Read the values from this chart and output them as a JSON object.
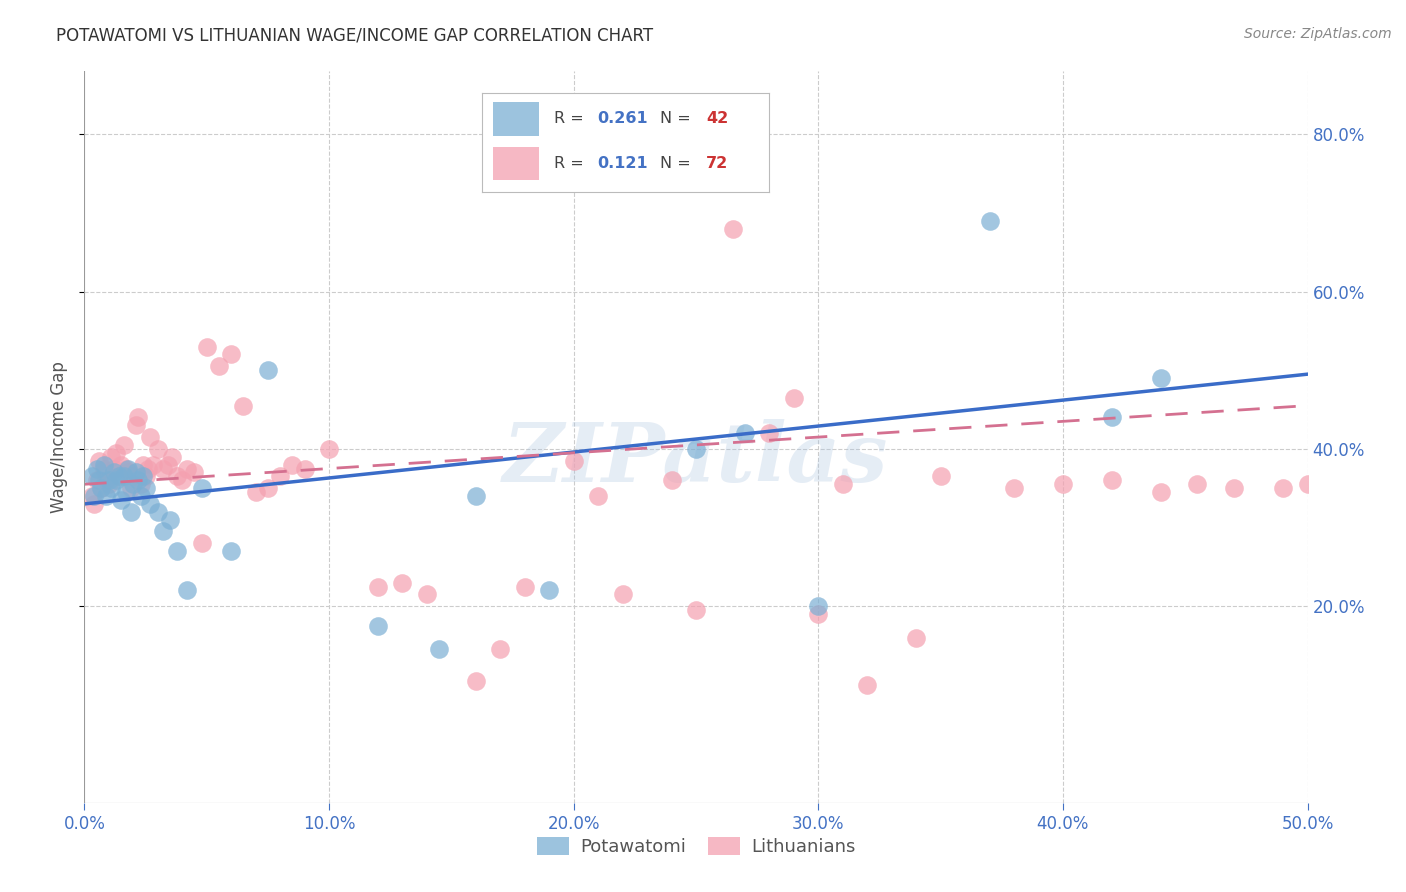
{
  "title": "POTAWATOMI VS LITHUANIAN WAGE/INCOME GAP CORRELATION CHART",
  "source": "Source: ZipAtlas.com",
  "ylabel": "Wage/Income Gap",
  "xlim": [
    0.0,
    0.5
  ],
  "ylim": [
    -0.05,
    0.88
  ],
  "xtick_labels": [
    "0.0%",
    "10.0%",
    "20.0%",
    "30.0%",
    "40.0%",
    "50.0%"
  ],
  "xtick_vals": [
    0.0,
    0.1,
    0.2,
    0.3,
    0.4,
    0.5
  ],
  "ytick_labels": [
    "20.0%",
    "40.0%",
    "60.0%",
    "80.0%"
  ],
  "ytick_vals": [
    0.2,
    0.4,
    0.6,
    0.8
  ],
  "grid_color": "#cccccc",
  "background_color": "#ffffff",
  "watermark": "ZIPatlas",
  "blue_color": "#7bafd4",
  "pink_color": "#f4a0b0",
  "blue_line_color": "#3a6cc8",
  "pink_line_color": "#d47090",
  "pot_x": [
    0.003,
    0.004,
    0.005,
    0.006,
    0.007,
    0.008,
    0.009,
    0.01,
    0.011,
    0.012,
    0.013,
    0.014,
    0.015,
    0.016,
    0.017,
    0.018,
    0.019,
    0.02,
    0.021,
    0.022,
    0.023,
    0.024,
    0.025,
    0.027,
    0.03,
    0.032,
    0.035,
    0.038,
    0.042,
    0.048,
    0.06,
    0.075,
    0.12,
    0.145,
    0.25,
    0.27,
    0.3,
    0.37,
    0.42,
    0.44,
    0.16,
    0.19
  ],
  "pot_y": [
    0.365,
    0.34,
    0.375,
    0.36,
    0.35,
    0.38,
    0.34,
    0.36,
    0.35,
    0.37,
    0.36,
    0.365,
    0.335,
    0.365,
    0.345,
    0.375,
    0.32,
    0.355,
    0.37,
    0.36,
    0.34,
    0.365,
    0.35,
    0.33,
    0.32,
    0.295,
    0.31,
    0.27,
    0.22,
    0.35,
    0.27,
    0.5,
    0.175,
    0.145,
    0.4,
    0.42,
    0.2,
    0.69,
    0.44,
    0.49,
    0.34,
    0.22
  ],
  "lit_x": [
    0.003,
    0.004,
    0.005,
    0.006,
    0.007,
    0.008,
    0.009,
    0.01,
    0.011,
    0.012,
    0.013,
    0.014,
    0.015,
    0.016,
    0.017,
    0.018,
    0.019,
    0.02,
    0.021,
    0.022,
    0.023,
    0.024,
    0.025,
    0.026,
    0.027,
    0.028,
    0.03,
    0.032,
    0.034,
    0.036,
    0.038,
    0.04,
    0.042,
    0.045,
    0.048,
    0.05,
    0.055,
    0.06,
    0.065,
    0.07,
    0.075,
    0.08,
    0.085,
    0.09,
    0.1,
    0.12,
    0.14,
    0.16,
    0.18,
    0.2,
    0.22,
    0.24,
    0.25,
    0.265,
    0.28,
    0.29,
    0.3,
    0.31,
    0.32,
    0.34,
    0.35,
    0.38,
    0.4,
    0.42,
    0.44,
    0.455,
    0.47,
    0.49,
    0.5,
    0.21,
    0.17,
    0.13
  ],
  "lit_y": [
    0.34,
    0.33,
    0.36,
    0.385,
    0.35,
    0.375,
    0.36,
    0.355,
    0.39,
    0.375,
    0.395,
    0.365,
    0.38,
    0.405,
    0.375,
    0.37,
    0.35,
    0.365,
    0.43,
    0.44,
    0.355,
    0.38,
    0.365,
    0.375,
    0.415,
    0.38,
    0.4,
    0.375,
    0.38,
    0.39,
    0.365,
    0.36,
    0.375,
    0.37,
    0.28,
    0.53,
    0.505,
    0.52,
    0.455,
    0.345,
    0.35,
    0.365,
    0.38,
    0.375,
    0.4,
    0.225,
    0.215,
    0.105,
    0.225,
    0.385,
    0.215,
    0.36,
    0.195,
    0.68,
    0.42,
    0.465,
    0.19,
    0.355,
    0.1,
    0.16,
    0.365,
    0.35,
    0.355,
    0.36,
    0.345,
    0.355,
    0.35,
    0.35,
    0.355,
    0.34,
    0.145,
    0.23
  ]
}
